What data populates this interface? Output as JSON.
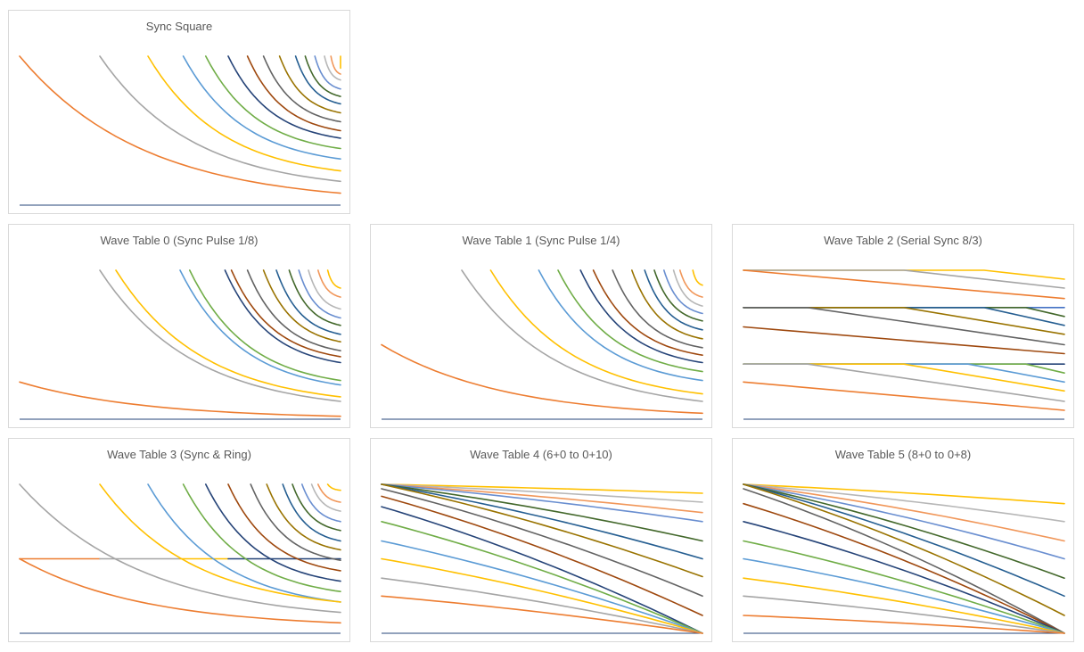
{
  "palette": [
    "#4472C4",
    "#ED7D31",
    "#A5A5A5",
    "#FFC000",
    "#5B9BD5",
    "#70AD47",
    "#264478",
    "#9E480E",
    "#636363",
    "#997300",
    "#255E91",
    "#43682B",
    "#698ED0",
    "#F1975A",
    "#B7B7B7",
    "#FFCD33"
  ],
  "baseline_color": "#264478",
  "chart_data": [
    {
      "type": "line",
      "title": "Sync Square",
      "pattern": "sync",
      "baseline": true,
      "series": [
        {
          "color_index": 3,
          "start": 0.0,
          "end": 1.0,
          "y0": 1.0,
          "y1": 0.92
        },
        {
          "color_index": 13,
          "start": 0.0,
          "end": 0.97,
          "y0": 1.0,
          "y1": 0.88
        },
        {
          "color_index": 14,
          "start": 0.0,
          "end": 0.95,
          "y0": 1.0,
          "y1": 0.84
        },
        {
          "color_index": 12,
          "start": 0.0,
          "end": 0.92,
          "y0": 1.0,
          "y1": 0.78
        },
        {
          "color_index": 11,
          "start": 0.0,
          "end": 0.89,
          "y0": 1.0,
          "y1": 0.73
        },
        {
          "color_index": 10,
          "start": 0.0,
          "end": 0.86,
          "y0": 1.0,
          "y1": 0.68
        },
        {
          "color_index": 9,
          "start": 0.0,
          "end": 0.81,
          "y0": 1.0,
          "y1": 0.62
        },
        {
          "color_index": 8,
          "start": 0.0,
          "end": 0.76,
          "y0": 1.0,
          "y1": 0.56
        },
        {
          "color_index": 7,
          "start": 0.0,
          "end": 0.71,
          "y0": 1.0,
          "y1": 0.5
        },
        {
          "color_index": 6,
          "start": 0.0,
          "end": 0.65,
          "y0": 1.0,
          "y1": 0.45
        },
        {
          "color_index": 5,
          "start": 0.0,
          "end": 0.58,
          "y0": 1.0,
          "y1": 0.38
        },
        {
          "color_index": 4,
          "start": 0.0,
          "end": 0.51,
          "y0": 1.0,
          "y1": 0.31
        },
        {
          "color_index": 3,
          "start": 0.0,
          "end": 0.4,
          "y0": 1.0,
          "y1": 0.23
        },
        {
          "color_index": 2,
          "start": 0.0,
          "end": 0.25,
          "y0": 1.0,
          "y1": 0.16
        },
        {
          "color_index": 1,
          "start": 0.0,
          "end": 0.0,
          "y0": 1.0,
          "y1": 0.08
        }
      ]
    },
    {
      "type": "line",
      "title": "Wave Table 0 (Sync Pulse 1/8)",
      "pattern": "sync",
      "baseline": true,
      "series": [
        {
          "color_index": 3,
          "start": 0.0,
          "end": 0.96,
          "y0": 1.0,
          "y1": 0.88
        },
        {
          "color_index": 13,
          "start": 0.0,
          "end": 0.93,
          "y0": 1.0,
          "y1": 0.82
        },
        {
          "color_index": 14,
          "start": 0.0,
          "end": 0.9,
          "y0": 1.0,
          "y1": 0.74
        },
        {
          "color_index": 12,
          "start": 0.0,
          "end": 0.87,
          "y0": 1.0,
          "y1": 0.68
        },
        {
          "color_index": 11,
          "start": 0.0,
          "end": 0.84,
          "y0": 1.0,
          "y1": 0.63
        },
        {
          "color_index": 10,
          "start": 0.0,
          "end": 0.8,
          "y0": 1.0,
          "y1": 0.57
        },
        {
          "color_index": 9,
          "start": 0.0,
          "end": 0.76,
          "y0": 1.0,
          "y1": 0.52
        },
        {
          "color_index": 8,
          "start": 0.0,
          "end": 0.71,
          "y0": 1.0,
          "y1": 0.46
        },
        {
          "color_index": 7,
          "start": 0.0,
          "end": 0.66,
          "y0": 1.0,
          "y1": 0.42
        },
        {
          "color_index": 6,
          "start": 0.0,
          "end": 0.64,
          "y0": 1.0,
          "y1": 0.38
        },
        {
          "color_index": 5,
          "start": 0.0,
          "end": 0.53,
          "y0": 1.0,
          "y1": 0.26
        },
        {
          "color_index": 4,
          "start": 0.0,
          "end": 0.5,
          "y0": 1.0,
          "y1": 0.23
        },
        {
          "color_index": 3,
          "start": 0.0,
          "end": 0.3,
          "y0": 1.0,
          "y1": 0.15
        },
        {
          "color_index": 2,
          "start": 0.0,
          "end": 0.25,
          "y0": 1.0,
          "y1": 0.12
        },
        {
          "color_index": 1,
          "start": 0.0,
          "end": 0.0,
          "y0": 0.25,
          "y1": 0.02
        }
      ]
    },
    {
      "type": "line",
      "title": "Wave Table 1 (Sync Pulse 1/4)",
      "pattern": "sync",
      "baseline": true,
      "series": [
        {
          "color_index": 3,
          "start": 0.0,
          "end": 0.97,
          "y0": 1.0,
          "y1": 0.9
        },
        {
          "color_index": 13,
          "start": 0.0,
          "end": 0.93,
          "y0": 1.0,
          "y1": 0.82
        },
        {
          "color_index": 14,
          "start": 0.0,
          "end": 0.91,
          "y0": 1.0,
          "y1": 0.76
        },
        {
          "color_index": 12,
          "start": 0.0,
          "end": 0.88,
          "y0": 1.0,
          "y1": 0.71
        },
        {
          "color_index": 11,
          "start": 0.0,
          "end": 0.85,
          "y0": 1.0,
          "y1": 0.66
        },
        {
          "color_index": 10,
          "start": 0.0,
          "end": 0.82,
          "y0": 1.0,
          "y1": 0.6
        },
        {
          "color_index": 9,
          "start": 0.0,
          "end": 0.78,
          "y0": 1.0,
          "y1": 0.54
        },
        {
          "color_index": 8,
          "start": 0.0,
          "end": 0.72,
          "y0": 1.0,
          "y1": 0.48
        },
        {
          "color_index": 7,
          "start": 0.0,
          "end": 0.66,
          "y0": 1.0,
          "y1": 0.43
        },
        {
          "color_index": 6,
          "start": 0.0,
          "end": 0.62,
          "y0": 1.0,
          "y1": 0.38
        },
        {
          "color_index": 5,
          "start": 0.0,
          "end": 0.55,
          "y0": 1.0,
          "y1": 0.32
        },
        {
          "color_index": 4,
          "start": 0.0,
          "end": 0.49,
          "y0": 1.0,
          "y1": 0.26
        },
        {
          "color_index": 3,
          "start": 0.0,
          "end": 0.34,
          "y0": 1.0,
          "y1": 0.17
        },
        {
          "color_index": 2,
          "start": 0.0,
          "end": 0.25,
          "y0": 1.0,
          "y1": 0.12
        },
        {
          "color_index": 1,
          "start": 0.0,
          "end": 0.0,
          "y0": 0.5,
          "y1": 0.04
        }
      ]
    },
    {
      "type": "line",
      "title": "Wave Table 2 (Serial Sync 8/3)",
      "pattern": "serial",
      "baseline": true,
      "series": [
        {
          "color_index": 3,
          "start": 0.75,
          "y0": 1.0,
          "y1": 0.94
        },
        {
          "color_index": 2,
          "start": 0.5,
          "y0": 1.0,
          "y1": 0.88
        },
        {
          "color_index": 1,
          "start": 0.0,
          "y0": 1.0,
          "y1": 0.81
        },
        {
          "color_index": 0,
          "start": 0.0,
          "y0": 0.75,
          "y1": 0.75
        },
        {
          "color_index": 11,
          "start": 0.88,
          "y0": 0.75,
          "y1": 0.69
        },
        {
          "color_index": 10,
          "start": 0.75,
          "y0": 0.75,
          "y1": 0.63
        },
        {
          "color_index": 9,
          "start": 0.5,
          "y0": 0.75,
          "y1": 0.57
        },
        {
          "color_index": 8,
          "start": 0.2,
          "y0": 0.75,
          "y1": 0.5
        },
        {
          "color_index": 7,
          "start": 0.0,
          "y0": 0.62,
          "y1": 0.44
        },
        {
          "color_index": 6,
          "start": 0.0,
          "y0": 0.37,
          "y1": 0.37
        },
        {
          "color_index": 5,
          "start": 0.88,
          "y0": 0.37,
          "y1": 0.31
        },
        {
          "color_index": 4,
          "start": 0.7,
          "y0": 0.37,
          "y1": 0.25
        },
        {
          "color_index": 3,
          "start": 0.5,
          "y0": 0.37,
          "y1": 0.19
        },
        {
          "color_index": 2,
          "start": 0.2,
          "y0": 0.37,
          "y1": 0.12
        },
        {
          "color_index": 1,
          "start": 0.0,
          "y0": 0.25,
          "y1": 0.06
        }
      ]
    },
    {
      "type": "line",
      "title": "Wave Table 3 (Sync & Ring)",
      "pattern": "sync",
      "baseline": true,
      "series": [
        {
          "color_index": 3,
          "start": 0.0,
          "end": 0.96,
          "y0": 1.0,
          "y1": 0.96
        },
        {
          "color_index": 13,
          "start": 0.0,
          "end": 0.93,
          "y0": 1.0,
          "y1": 0.88
        },
        {
          "color_index": 14,
          "start": 0.0,
          "end": 0.91,
          "y0": 1.0,
          "y1": 0.82
        },
        {
          "color_index": 12,
          "start": 0.0,
          "end": 0.88,
          "y0": 1.0,
          "y1": 0.75
        },
        {
          "color_index": 11,
          "start": 0.0,
          "end": 0.85,
          "y0": 1.0,
          "y1": 0.69
        },
        {
          "color_index": 10,
          "start": 0.0,
          "end": 0.82,
          "y0": 1.0,
          "y1": 0.62
        },
        {
          "color_index": 9,
          "start": 0.0,
          "end": 0.77,
          "y0": 1.0,
          "y1": 0.56
        },
        {
          "color_index": 8,
          "start": 0.0,
          "end": 0.72,
          "y0": 1.0,
          "y1": 0.49
        },
        {
          "color_index": 7,
          "start": 0.0,
          "end": 0.65,
          "y0": 1.0,
          "y1": 0.42
        },
        {
          "color_index": 6,
          "start": 0.0,
          "end": 0.58,
          "y0": 1.0,
          "y1": 0.35
        },
        {
          "color_index": 5,
          "start": 0.0,
          "end": 0.51,
          "y0": 1.0,
          "y1": 0.28
        },
        {
          "color_index": 4,
          "start": 0.0,
          "end": 0.4,
          "y0": 1.0,
          "y1": 0.21
        },
        {
          "color_index": 3,
          "start": 0.0,
          "end": 0.25,
          "y0": 1.0,
          "y1": 0.21
        },
        {
          "color_index": 2,
          "start": 0.0,
          "end": 0.0,
          "y0": 1.0,
          "y1": 0.14
        },
        {
          "color_index": 1,
          "start": 0.0,
          "end": 0.0,
          "y0": 0.5,
          "y1": 0.07
        }
      ],
      "ring_lines": [
        {
          "color_index": 1,
          "from": 0.0,
          "to": 0.25,
          "y": 0.5
        },
        {
          "color_index": 2,
          "from": 0.25,
          "to": 0.5,
          "y": 0.5
        },
        {
          "color_index": 3,
          "from": 0.5,
          "to": 0.65,
          "y": 0.5
        },
        {
          "color_index": 6,
          "from": 0.65,
          "to": 1.0,
          "y": 0.5
        }
      ]
    },
    {
      "type": "line",
      "title": "Wave Table 4 (6+0 to 0+10)",
      "pattern": "converge",
      "baseline": true,
      "series": [
        {
          "color_index": 3,
          "y0": 1.0,
          "y1": 0.94
        },
        {
          "color_index": 14,
          "y0": 1.0,
          "y1": 0.88
        },
        {
          "color_index": 13,
          "y0": 1.0,
          "y1": 0.81
        },
        {
          "color_index": 12,
          "y0": 1.0,
          "y1": 0.75
        },
        {
          "color_index": 11,
          "y0": 1.0,
          "y1": 0.62
        },
        {
          "color_index": 10,
          "y0": 1.0,
          "y1": 0.5
        },
        {
          "color_index": 9,
          "y0": 1.0,
          "y1": 0.38
        },
        {
          "color_index": 8,
          "y0": 0.97,
          "y1": 0.25
        },
        {
          "color_index": 7,
          "y0": 0.92,
          "y1": 0.12
        },
        {
          "color_index": 6,
          "y0": 0.85,
          "y1": 0.0
        },
        {
          "color_index": 5,
          "y0": 0.75,
          "y1": 0.0
        },
        {
          "color_index": 4,
          "y0": 0.62,
          "y1": 0.0
        },
        {
          "color_index": 3,
          "y0": 0.5,
          "y1": 0.0
        },
        {
          "color_index": 2,
          "y0": 0.37,
          "y1": 0.0
        },
        {
          "color_index": 1,
          "y0": 0.25,
          "y1": 0.0
        }
      ]
    },
    {
      "type": "line",
      "title": "Wave Table 5 (8+0 to 0+8)",
      "pattern": "converge",
      "baseline": true,
      "series": [
        {
          "color_index": 3,
          "y0": 1.0,
          "y1": 0.87
        },
        {
          "color_index": 14,
          "y0": 1.0,
          "y1": 0.75
        },
        {
          "color_index": 13,
          "y0": 1.0,
          "y1": 0.62
        },
        {
          "color_index": 12,
          "y0": 1.0,
          "y1": 0.5
        },
        {
          "color_index": 11,
          "y0": 1.0,
          "y1": 0.37
        },
        {
          "color_index": 10,
          "y0": 1.0,
          "y1": 0.25
        },
        {
          "color_index": 9,
          "y0": 1.0,
          "y1": 0.12
        },
        {
          "color_index": 8,
          "y0": 0.97,
          "y1": 0.0
        },
        {
          "color_index": 7,
          "y0": 0.87,
          "y1": 0.0
        },
        {
          "color_index": 6,
          "y0": 0.75,
          "y1": 0.0
        },
        {
          "color_index": 5,
          "y0": 0.62,
          "y1": 0.0
        },
        {
          "color_index": 4,
          "y0": 0.5,
          "y1": 0.0
        },
        {
          "color_index": 3,
          "y0": 0.37,
          "y1": 0.0
        },
        {
          "color_index": 2,
          "y0": 0.25,
          "y1": 0.0
        },
        {
          "color_index": 1,
          "y0": 0.12,
          "y1": 0.0
        }
      ]
    }
  ]
}
